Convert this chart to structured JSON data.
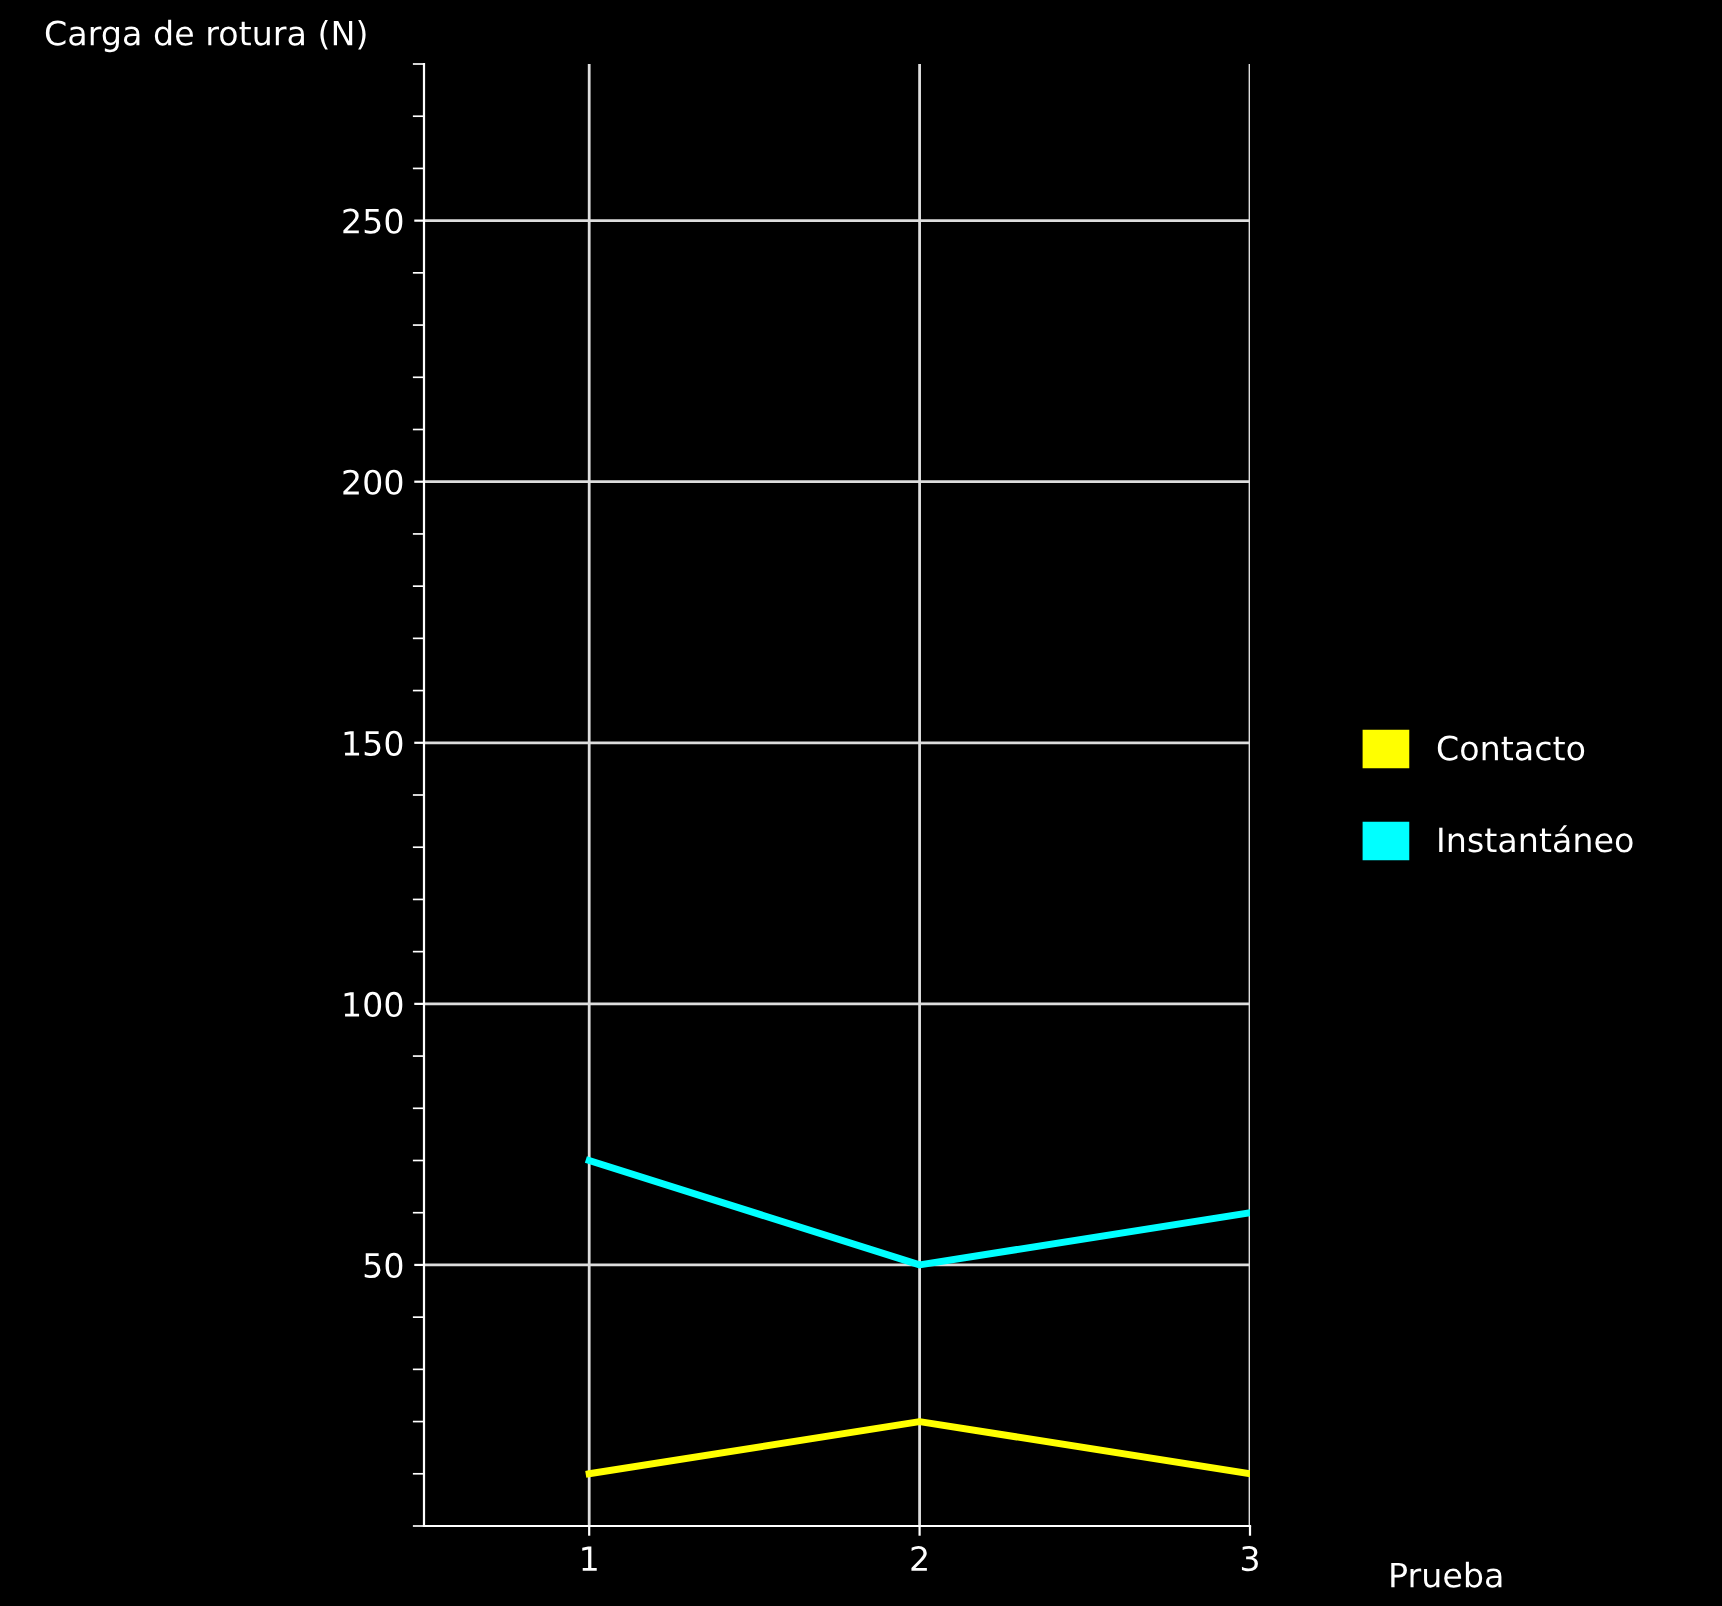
{
  "chart_data": {
    "type": "line",
    "ylabel": "Carga de rotura (N)",
    "xlabel": "Prueba",
    "x": [
      1,
      2,
      3
    ],
    "xlim": [
      0.5,
      3
    ],
    "xticks": [
      1,
      2,
      3
    ],
    "ylim": [
      0,
      280
    ],
    "yticks": [
      50,
      100,
      150,
      200,
      250
    ],
    "series": [
      {
        "name": "Contacto",
        "color": "#ffff00",
        "values": [
          10,
          20,
          10
        ]
      },
      {
        "name": "Instantáneo",
        "color": "#00ffff",
        "values": [
          70,
          50,
          60
        ]
      }
    ],
    "grid": true,
    "legend": "right",
    "marker": "none",
    "line_style": "solid"
  }
}
